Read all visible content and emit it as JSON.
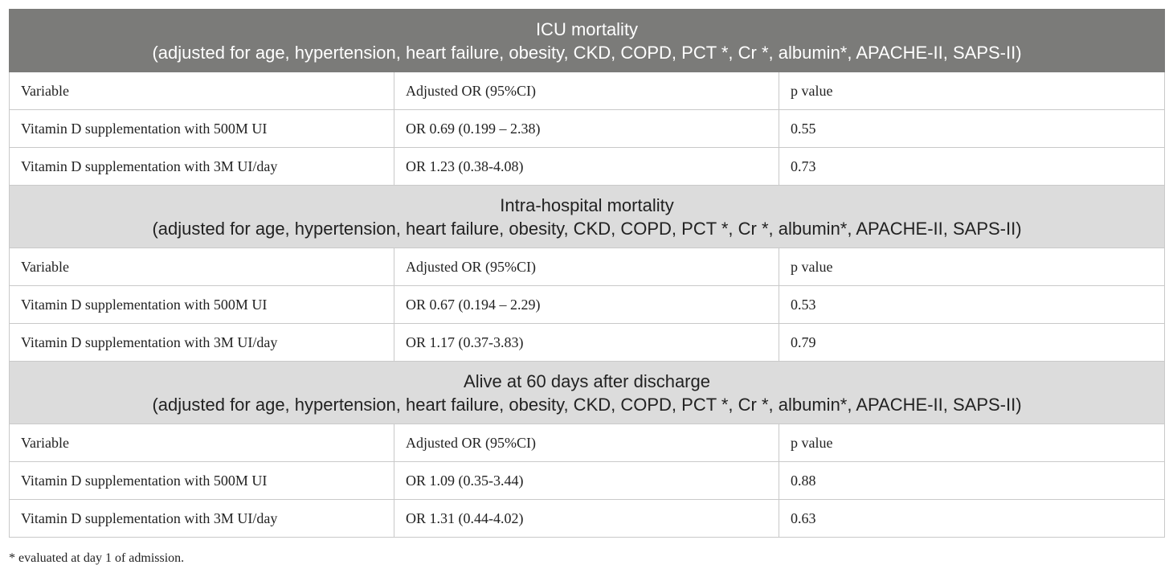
{
  "sections": [
    {
      "title": "ICU mortality",
      "subtitle": "(adjusted for age, hypertension, heart failure, obesity, CKD, COPD, PCT *, Cr *, albumin*, APACHE-II, SAPS-II)",
      "columns": [
        "Variable",
        "Adjusted OR (95%CI)",
        "p value"
      ],
      "rows": [
        [
          "Vitamin D supplementation with 500M UI",
          "OR 0.69 (0.199 – 2.38)",
          "0.55"
        ],
        [
          "Vitamin D supplementation with 3M UI/day",
          "OR 1.23 (0.38-4.08)",
          "0.73"
        ]
      ]
    },
    {
      "title": "Intra-hospital mortality",
      "subtitle": "(adjusted for age, hypertension, heart failure, obesity, CKD, COPD, PCT *, Cr *, albumin*, APACHE-II, SAPS-II)",
      "columns": [
        "Variable",
        "Adjusted OR (95%CI)",
        "p value"
      ],
      "rows": [
        [
          "Vitamin D supplementation with 500M UI",
          "OR 0.67 (0.194 – 2.29)",
          "0.53"
        ],
        [
          "Vitamin D supplementation with 3M UI/day",
          "OR 1.17 (0.37-3.83)",
          "0.79"
        ]
      ]
    },
    {
      "title": "Alive at 60 days after discharge",
      "subtitle": "(adjusted for age, hypertension, heart failure, obesity, CKD, COPD, PCT *, Cr *, albumin*, APACHE-II, SAPS-II)",
      "columns": [
        "Variable",
        "Adjusted OR (95%CI)",
        "p value"
      ],
      "rows": [
        [
          "Vitamin D supplementation with 500M UI",
          "OR 1.09 (0.35-3.44)",
          "0.88"
        ],
        [
          "Vitamin D supplementation with 3M UI/day",
          "OR 1.31 (0.44-4.02)",
          "0.63"
        ]
      ]
    }
  ],
  "footnote": "* evaluated at day 1 of admission.",
  "colors": {
    "header_dark": "#7b7b79",
    "header_light": "#dcdcdc",
    "border": "#c9c9c9"
  }
}
